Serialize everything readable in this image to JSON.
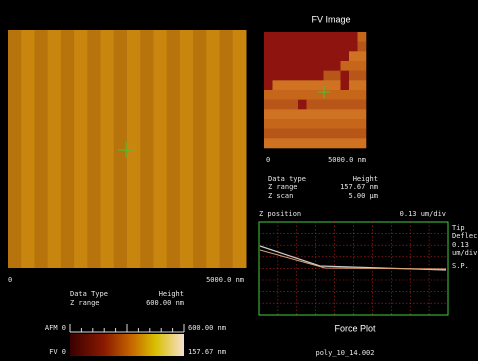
{
  "afm_image": {
    "axis_start": "0",
    "axis_end": "5000.0 nm",
    "info": [
      [
        "Data Type",
        "Height"
      ],
      [
        "Z range",
        "600.00 nm"
      ]
    ]
  },
  "color_bar": {
    "afm_label": "AFM 0",
    "afm_max": "600.00 nm",
    "fv_label": "FV 0",
    "fv_max": "157.67 nm"
  },
  "fv_image": {
    "title": "FV Image",
    "axis_start": "0",
    "axis_end": "5000.0 nm",
    "info": [
      [
        "Data type",
        "Height"
      ],
      [
        "Z range",
        "157.67 nm"
      ],
      [
        "Z scan",
        "5.00 µm"
      ]
    ]
  },
  "force_plot": {
    "y_label": "Z position",
    "y_scale": "0.13 um/div",
    "side_labels": [
      "Tip",
      "Deflec",
      "0.13",
      "um/div",
      "S.P."
    ],
    "title": "Force Plot",
    "file": "poly_10_14.002"
  }
}
